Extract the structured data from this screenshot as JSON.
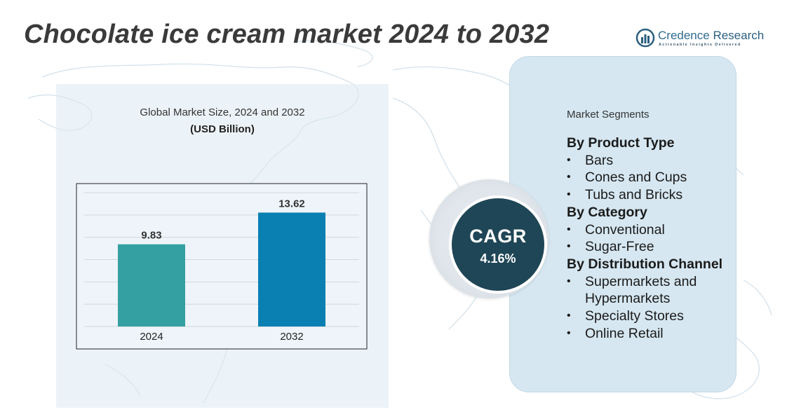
{
  "header": {
    "title": "Chocolate ice cream market 2024 to 2032"
  },
  "brand": {
    "name_part1": "Credence",
    "name_part2": " Research",
    "tagline": "Actionable Insights Delivered",
    "color": "#2b5f7e"
  },
  "chart_data": {
    "type": "bar",
    "title": "Global Market Size, 2024 and 2032",
    "subtitle": "(USD Billion)",
    "categories": [
      "2024",
      "2032"
    ],
    "values": [
      9.83,
      13.62
    ],
    "value_labels": [
      "9.83",
      "13.62"
    ],
    "colors": [
      "#35a0a1",
      "#0a7fb2"
    ],
    "ylim": [
      0,
      16
    ],
    "grid": true,
    "xlabel": "",
    "ylabel": ""
  },
  "cagr": {
    "label": "CAGR",
    "value": "4.16%"
  },
  "segments": {
    "header": "Market Segments",
    "groups": [
      {
        "title": "By Product Type",
        "items": [
          "Bars",
          "Cones and Cups",
          "Tubs and Bricks"
        ]
      },
      {
        "title": "By Category",
        "items": [
          "Conventional",
          "Sugar-Free"
        ]
      },
      {
        "title": "By Distribution Channel",
        "items": [
          "Supermarkets and Hypermarkets",
          "Specialty Stores",
          "Online Retail"
        ]
      }
    ]
  }
}
